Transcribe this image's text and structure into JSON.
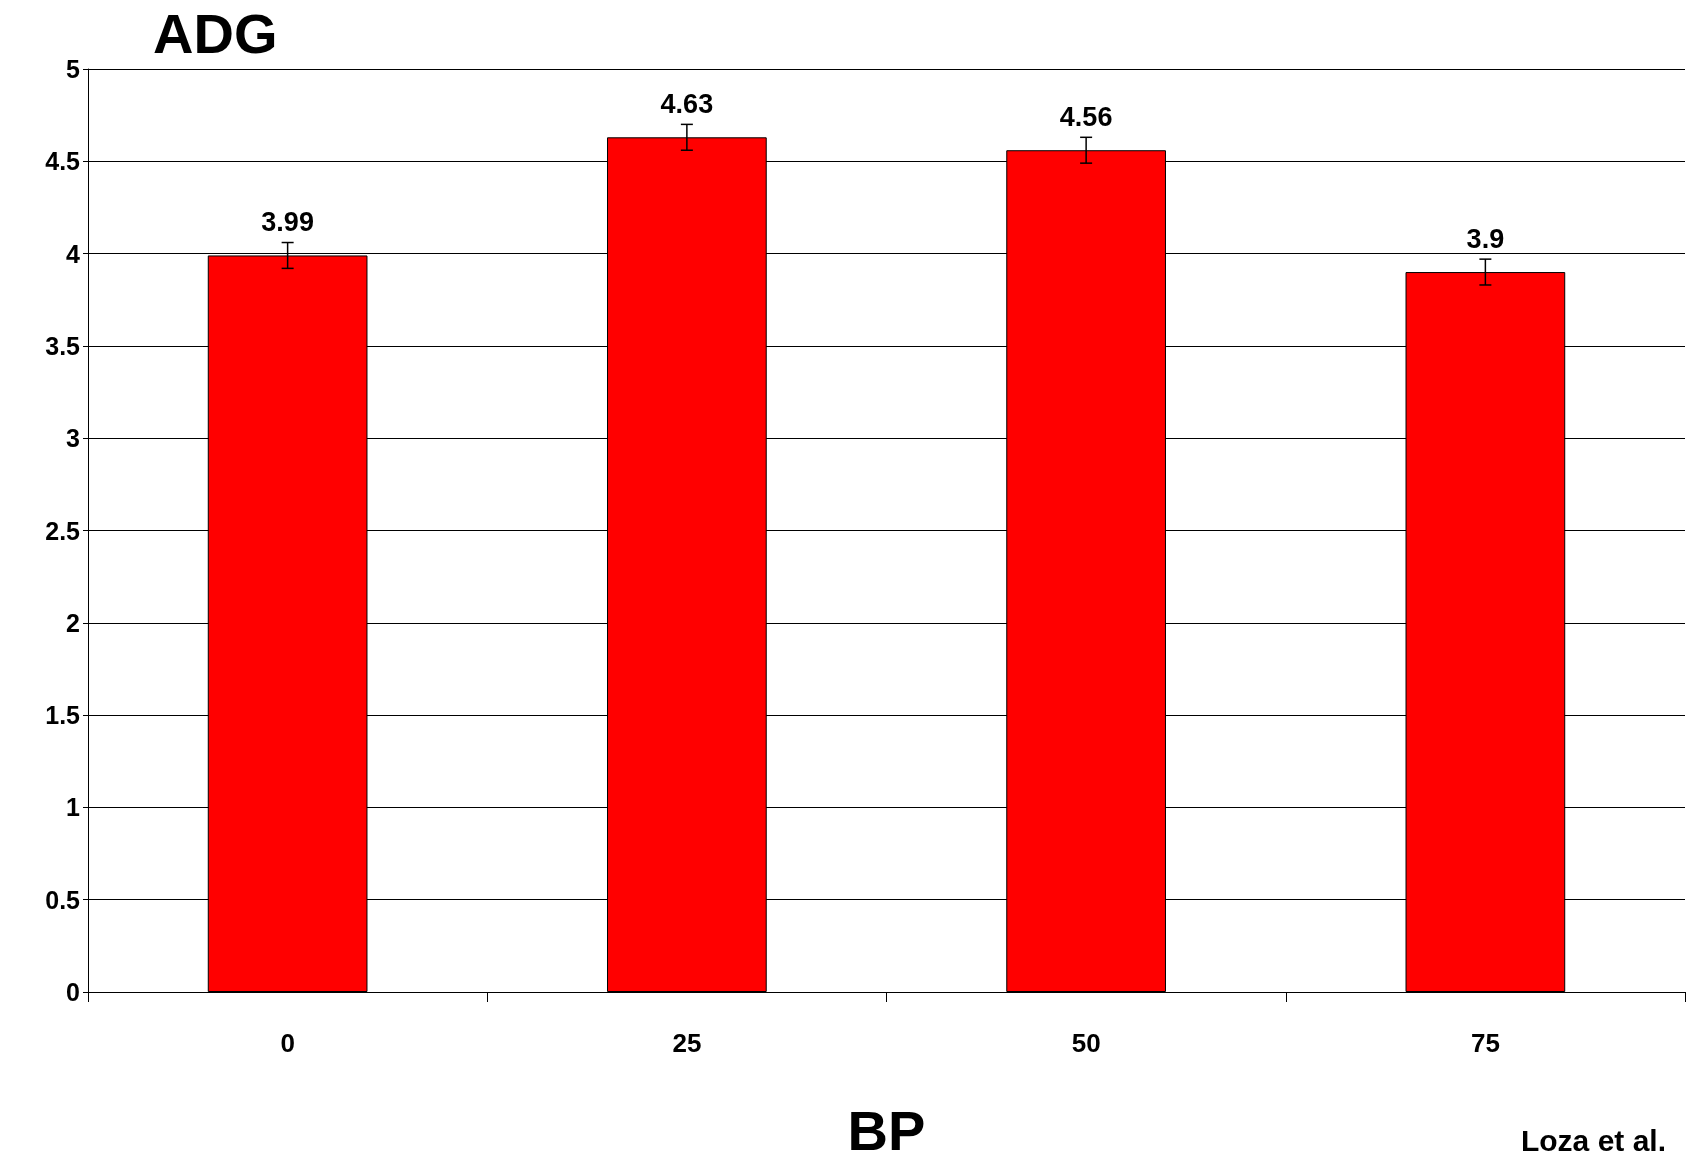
{
  "chart_data": {
    "type": "bar",
    "title": "ADG",
    "xlabel": "BP",
    "categories": [
      "0",
      "25",
      "50",
      "75"
    ],
    "values": [
      3.99,
      4.63,
      4.56,
      3.9
    ],
    "errors": [
      0.07,
      0.07,
      0.07,
      0.07
    ],
    "color": "#ff0000",
    "ylim": [
      0,
      5
    ],
    "yticks": [
      0,
      0.5,
      1,
      1.5,
      2,
      2.5,
      3,
      3.5,
      4,
      4.5,
      5
    ],
    "grid": "y",
    "data_labels": true,
    "annotations": [
      "Loza et al."
    ]
  }
}
